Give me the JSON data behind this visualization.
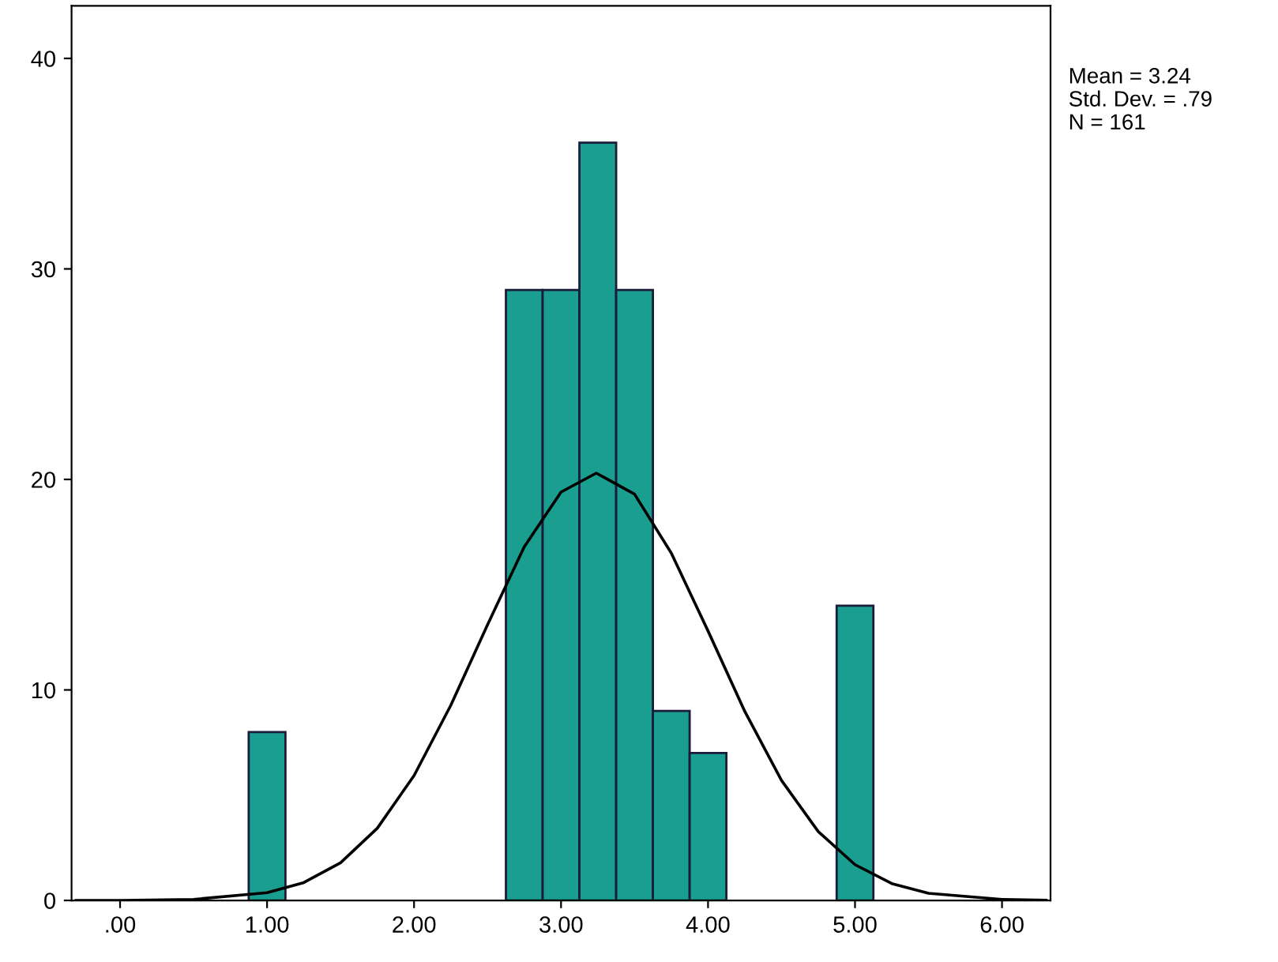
{
  "chart_data": {
    "type": "histogram",
    "bins": [
      0.875,
      1.125,
      1.375,
      1.625,
      1.875,
      2.125,
      2.375,
      2.625,
      2.875,
      3.125,
      3.375,
      3.625,
      3.875,
      4.125,
      4.375,
      4.625,
      4.875,
      5.125
    ],
    "series": [
      {
        "color": "#1a9e8f",
        "values": [
          8,
          0,
          0,
          0,
          0,
          0,
          0,
          29,
          29,
          36,
          29,
          9,
          7,
          0,
          0,
          0,
          14
        ]
      },
      {
        "type": "line",
        "color": "#000000",
        "x": [
          -0.3,
          0.0,
          0.5,
          1.0,
          1.25,
          1.5,
          1.75,
          2.0,
          2.25,
          2.5,
          2.75,
          3.0,
          3.24,
          3.5,
          3.75,
          4.0,
          4.25,
          4.5,
          4.75,
          5.0,
          5.25,
          5.5,
          6.0,
          6.3
        ],
        "values": [
          0.0,
          0.0,
          0.05,
          0.37,
          0.85,
          1.79,
          3.43,
          5.93,
          9.27,
          13.1,
          16.8,
          19.4,
          20.3,
          19.3,
          16.5,
          12.8,
          8.98,
          5.7,
          3.27,
          1.7,
          0.8,
          0.34,
          0.05,
          0.01
        ]
      }
    ],
    "xlim": [
      -0.33,
      6.33
    ],
    "xticks": [
      {
        "value": 0,
        "label": ".00"
      },
      {
        "value": 1,
        "label": "1.00"
      },
      {
        "value": 2,
        "label": "2.00"
      },
      {
        "value": 3,
        "label": "3.00"
      },
      {
        "value": 4,
        "label": "4.00"
      },
      {
        "value": 5,
        "label": "5.00"
      },
      {
        "value": 6,
        "label": "6.00"
      }
    ],
    "ylim": [
      0,
      42.5
    ],
    "yticks": [
      0,
      10,
      20,
      30,
      40
    ],
    "annotations": [
      "Mean = 3.24",
      "Std. Dev. = .79",
      "N = 161"
    ]
  }
}
